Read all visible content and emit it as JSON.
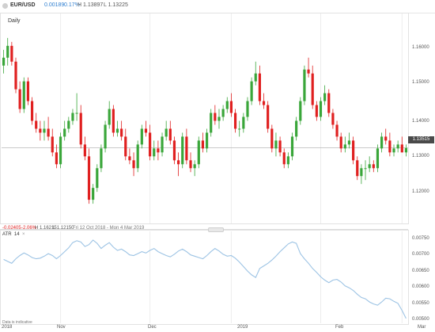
{
  "header": {
    "symbol": "EUR/USD",
    "change": "0.00189",
    "change_pct": "0.17%",
    "high": "H 1.13897",
    "low": "L 1.13225"
  },
  "timeframe": "Daily",
  "price_axis": [
    "1.16000",
    "1.15000",
    "1.14000",
    "1.13000",
    "1.12000"
  ],
  "current_price": "1.13515",
  "bottom_bar": {
    "change": "-0.02405",
    "change_pct": "-2.06%",
    "high": "H 1.16215",
    "low": "L 1.12150",
    "range": "Fri 12 Oct 2018 - Mon 4 Mar 2019"
  },
  "indicator": {
    "label": "ATR",
    "period": "14",
    "axis": [
      "0.00750",
      "0.00700",
      "0.00650",
      "0.00600",
      "0.00550",
      "0.00500"
    ]
  },
  "x_axis": [
    "2018",
    "Nov",
    "Dec",
    "2019",
    "Feb",
    "Mar"
  ],
  "disclaimer": "Data is indicative",
  "colors": {
    "up": "#3aa63a",
    "down": "#e02020",
    "atr": "#9cc3e4"
  },
  "chart_data": {
    "type": "candlestick",
    "x": [
      "2018-10-12",
      "2018-10-15",
      "2018-10-16",
      "2018-10-17",
      "2018-10-18",
      "2018-10-19",
      "2018-10-22",
      "2018-10-23",
      "2018-10-24",
      "2018-10-25",
      "2018-10-26",
      "2018-10-29",
      "2018-10-30",
      "2018-10-31",
      "2018-11-01",
      "2018-11-02",
      "2018-11-05",
      "2018-11-06",
      "2018-11-07",
      "2018-11-08",
      "2018-11-09",
      "2018-11-12",
      "2018-11-13",
      "2018-11-14",
      "2018-11-15",
      "2018-11-16",
      "2018-11-19",
      "2018-11-20",
      "2018-11-21",
      "2018-11-22",
      "2018-11-23",
      "2018-11-26",
      "2018-11-27",
      "2018-11-28",
      "2018-11-29",
      "2018-11-30",
      "2018-12-03",
      "2018-12-04",
      "2018-12-05",
      "2018-12-06",
      "2018-12-07",
      "2018-12-10",
      "2018-12-11",
      "2018-12-12",
      "2018-12-13",
      "2018-12-14",
      "2018-12-17",
      "2018-12-18",
      "2018-12-19",
      "2018-12-20",
      "2018-12-21",
      "2018-12-24",
      "2018-12-26",
      "2018-12-27",
      "2018-12-28",
      "2018-12-31",
      "2019-01-02",
      "2019-01-03",
      "2019-01-04",
      "2019-01-07",
      "2019-01-08",
      "2019-01-09",
      "2019-01-10",
      "2019-01-11",
      "2019-01-14",
      "2019-01-15",
      "2019-01-16",
      "2019-01-17",
      "2019-01-18",
      "2019-01-21",
      "2019-01-22",
      "2019-01-23",
      "2019-01-24",
      "2019-01-25",
      "2019-01-28",
      "2019-01-29",
      "2019-01-30",
      "2019-01-31",
      "2019-02-01",
      "2019-02-04",
      "2019-02-05",
      "2019-02-06",
      "2019-02-07",
      "2019-02-08",
      "2019-02-11",
      "2019-02-12",
      "2019-02-13",
      "2019-02-14",
      "2019-02-15",
      "2019-02-18",
      "2019-02-19",
      "2019-02-20",
      "2019-02-21",
      "2019-02-22",
      "2019-02-25",
      "2019-02-26",
      "2019-02-27",
      "2019-02-28",
      "2019-03-01",
      "2019-03-04"
    ],
    "open": [
      1.156,
      1.158,
      1.161,
      1.157,
      1.15,
      1.145,
      1.152,
      1.147,
      1.142,
      1.14,
      1.139,
      1.14,
      1.138,
      1.134,
      1.131,
      1.138,
      1.14,
      1.142,
      1.144,
      1.144,
      1.136,
      1.133,
      1.122,
      1.125,
      1.13,
      1.135,
      1.141,
      1.145,
      1.139,
      1.14,
      1.138,
      1.133,
      1.132,
      1.13,
      1.136,
      1.14,
      1.139,
      1.133,
      1.135,
      1.134,
      1.138,
      1.14,
      1.137,
      1.132,
      1.131,
      1.138,
      1.132,
      1.13,
      1.131,
      1.137,
      1.135,
      1.139,
      1.144,
      1.142,
      1.143,
      1.145,
      1.147,
      1.144,
      1.14,
      1.14,
      1.143,
      1.147,
      1.152,
      1.154,
      1.147,
      1.146,
      1.14,
      1.135,
      1.137,
      1.134,
      1.131,
      1.133,
      1.138,
      1.142,
      1.147,
      1.155,
      1.154,
      1.146,
      1.143,
      1.147,
      1.149,
      1.144,
      1.141,
      1.138,
      1.135,
      1.136,
      1.137,
      1.132,
      1.128,
      1.13,
      1.13,
      1.131,
      1.13,
      1.135,
      1.138,
      1.137,
      1.134,
      1.135,
      1.136,
      1.134
    ],
    "high": [
      1.16,
      1.163,
      1.162,
      1.158,
      1.152,
      1.153,
      1.153,
      1.148,
      1.144,
      1.142,
      1.142,
      1.143,
      1.14,
      1.136,
      1.139,
      1.142,
      1.143,
      1.145,
      1.149,
      1.146,
      1.138,
      1.135,
      1.126,
      1.131,
      1.136,
      1.142,
      1.147,
      1.146,
      1.142,
      1.142,
      1.14,
      1.135,
      1.134,
      1.137,
      1.141,
      1.142,
      1.141,
      1.137,
      1.137,
      1.139,
      1.142,
      1.142,
      1.138,
      1.134,
      1.139,
      1.14,
      1.134,
      1.132,
      1.138,
      1.139,
      1.14,
      1.145,
      1.146,
      1.145,
      1.146,
      1.148,
      1.149,
      1.145,
      1.142,
      1.144,
      1.148,
      1.153,
      1.157,
      1.156,
      1.149,
      1.147,
      1.141,
      1.139,
      1.138,
      1.135,
      1.134,
      1.139,
      1.143,
      1.148,
      1.156,
      1.158,
      1.156,
      1.147,
      1.148,
      1.151,
      1.15,
      1.145,
      1.142,
      1.139,
      1.138,
      1.139,
      1.138,
      1.133,
      1.131,
      1.132,
      1.133,
      1.132,
      1.136,
      1.139,
      1.14,
      1.139,
      1.136,
      1.137,
      1.138,
      1.136
    ],
    "low": [
      1.154,
      1.156,
      1.156,
      1.149,
      1.144,
      1.144,
      1.146,
      1.141,
      1.139,
      1.137,
      1.137,
      1.137,
      1.133,
      1.13,
      1.13,
      1.137,
      1.139,
      1.141,
      1.142,
      1.135,
      1.132,
      1.121,
      1.121,
      1.124,
      1.129,
      1.134,
      1.14,
      1.138,
      1.138,
      1.137,
      1.132,
      1.131,
      1.128,
      1.129,
      1.135,
      1.138,
      1.132,
      1.132,
      1.132,
      1.133,
      1.137,
      1.136,
      1.131,
      1.128,
      1.13,
      1.131,
      1.129,
      1.128,
      1.13,
      1.134,
      1.134,
      1.138,
      1.141,
      1.14,
      1.142,
      1.144,
      1.143,
      1.139,
      1.138,
      1.139,
      1.142,
      1.146,
      1.151,
      1.146,
      1.145,
      1.139,
      1.134,
      1.133,
      1.133,
      1.13,
      1.13,
      1.132,
      1.137,
      1.141,
      1.146,
      1.153,
      1.145,
      1.142,
      1.142,
      1.146,
      1.143,
      1.14,
      1.137,
      1.134,
      1.134,
      1.135,
      1.131,
      1.127,
      1.126,
      1.127,
      1.129,
      1.129,
      1.129,
      1.134,
      1.136,
      1.133,
      1.133,
      1.134,
      1.134,
      1.133
    ],
    "close": [
      1.158,
      1.161,
      1.157,
      1.15,
      1.145,
      1.152,
      1.147,
      1.142,
      1.14,
      1.139,
      1.14,
      1.138,
      1.134,
      1.131,
      1.138,
      1.14,
      1.142,
      1.144,
      1.144,
      1.136,
      1.133,
      1.122,
      1.125,
      1.13,
      1.135,
      1.141,
      1.145,
      1.139,
      1.14,
      1.138,
      1.133,
      1.132,
      1.13,
      1.136,
      1.14,
      1.139,
      1.133,
      1.135,
      1.134,
      1.138,
      1.14,
      1.137,
      1.132,
      1.131,
      1.138,
      1.132,
      1.13,
      1.131,
      1.137,
      1.135,
      1.139,
      1.144,
      1.142,
      1.143,
      1.145,
      1.147,
      1.144,
      1.14,
      1.14,
      1.143,
      1.147,
      1.152,
      1.154,
      1.147,
      1.146,
      1.14,
      1.135,
      1.137,
      1.134,
      1.131,
      1.133,
      1.138,
      1.142,
      1.147,
      1.155,
      1.154,
      1.146,
      1.143,
      1.147,
      1.149,
      1.144,
      1.141,
      1.138,
      1.135,
      1.136,
      1.137,
      1.132,
      1.128,
      1.13,
      1.13,
      1.131,
      1.13,
      1.135,
      1.138,
      1.137,
      1.134,
      1.135,
      1.136,
      1.134,
      1.1351
    ],
    "atr_values": [
      0.00688,
      0.00682,
      0.00676,
      0.0069,
      0.007,
      0.00708,
      0.00702,
      0.00694,
      0.0069,
      0.00692,
      0.00698,
      0.00706,
      0.007,
      0.0069,
      0.007,
      0.00712,
      0.00724,
      0.0074,
      0.00746,
      0.00742,
      0.00728,
      0.00734,
      0.00748,
      0.00738,
      0.00722,
      0.00732,
      0.0074,
      0.00726,
      0.00716,
      0.0072,
      0.00712,
      0.00702,
      0.007,
      0.00706,
      0.00712,
      0.00708,
      0.00716,
      0.00722,
      0.00712,
      0.00706,
      0.007,
      0.00696,
      0.00704,
      0.00714,
      0.0072,
      0.00712,
      0.00702,
      0.00698,
      0.00694,
      0.0069,
      0.007,
      0.00712,
      0.00722,
      0.00714,
      0.00704,
      0.00698,
      0.007,
      0.00692,
      0.0068,
      0.00666,
      0.00652,
      0.0064,
      0.00632,
      0.0066,
      0.00668,
      0.00676,
      0.00686,
      0.00698,
      0.00712,
      0.00724,
      0.00736,
      0.00742,
      0.00738,
      0.00706,
      0.0069,
      0.00676,
      0.0066,
      0.00648,
      0.00634,
      0.00624,
      0.00616,
      0.00624,
      0.00626,
      0.00618,
      0.00606,
      0.006,
      0.00592,
      0.0058,
      0.0057,
      0.00566,
      0.00556,
      0.0055,
      0.00546,
      0.00556,
      0.00568,
      0.00566,
      0.00558,
      0.00552,
      0.0053,
      0.00505
    ],
    "price_ylim": [
      1.116,
      1.169
    ],
    "atr_ylim": [
      0.0049,
      0.00775
    ]
  }
}
